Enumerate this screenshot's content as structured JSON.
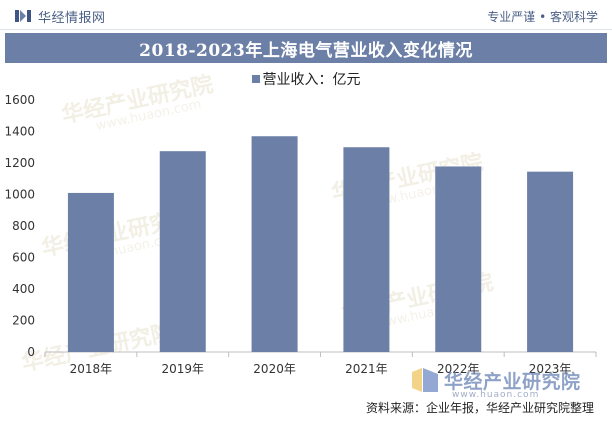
{
  "header": {
    "brand_name": "华经情报网",
    "tagline": "专业严谨 • 客观科学"
  },
  "chart_data": {
    "type": "bar",
    "title": "2018-2023年上海电气营业收入变化情况",
    "categories": [
      "2018年",
      "2019年",
      "2020年",
      "2021年",
      "2022年",
      "2023年"
    ],
    "series": [
      {
        "name": "营业收入：亿元",
        "values": [
          1010,
          1275,
          1370,
          1300,
          1178,
          1145
        ]
      }
    ],
    "ylim": [
      0,
      1600
    ],
    "yticks": [
      "0",
      "200",
      "400",
      "600",
      "800",
      "1000",
      "1200",
      "1400",
      "1600"
    ],
    "grid": false,
    "legend_position": "top-center",
    "bar_color": "#6c7fa6"
  },
  "footer": {
    "logo_text": "华经产业研究院",
    "logo_url": "www.huaon.com",
    "source": "资料来源：企业年报，华经产业研究院整理"
  },
  "watermarks": {
    "text": "华经产业研究院",
    "url": "www.huaon.com"
  }
}
